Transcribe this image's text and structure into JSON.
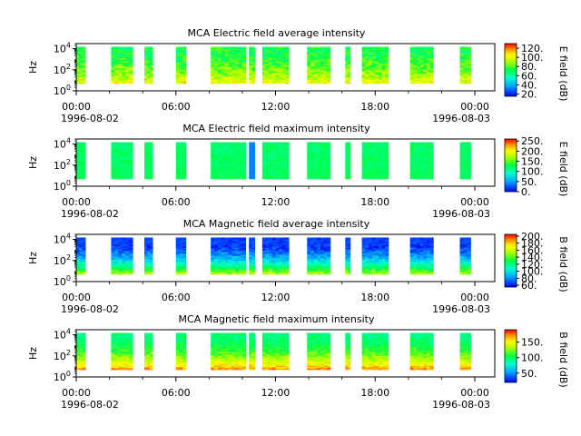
{
  "figure": {
    "time_start": "1996-08-02 00:00",
    "time_end": "1996-08-03 00:00"
  },
  "chart_data": [
    {
      "type": "heatmap",
      "title": "MCA  Electric field average intensity",
      "ylabel": "Hz",
      "yscale": "log",
      "ylim": [
        1,
        30000
      ],
      "y_ticks": [
        {
          "label": "10",
          "exp": "0",
          "value": 1
        },
        {
          "label": "10",
          "exp": "2",
          "value": 100
        },
        {
          "label": "10",
          "exp": "4",
          "value": 10000
        }
      ],
      "x_tick_labels": [
        "00:00",
        "06:00",
        "12:00",
        "18:00",
        "00:00"
      ],
      "x_date_labels": [
        "1996-08-02",
        "1996-08-03"
      ],
      "colorbar_label": "E field (dB)",
      "colorbar_ticks": [
        "120.",
        "100.",
        "80.",
        "60.",
        "40.",
        "20."
      ],
      "colorbar_range": [
        15,
        130
      ],
      "colorscale": "rainbow",
      "pattern": "electric",
      "level_base": 72,
      "low_freq_boost": 30
    },
    {
      "type": "heatmap",
      "title": "MCA  Electric field maximum intensity",
      "ylabel": "Hz",
      "yscale": "log",
      "ylim": [
        1,
        30000
      ],
      "y_ticks": [
        {
          "label": "10",
          "exp": "0",
          "value": 1
        },
        {
          "label": "10",
          "exp": "2",
          "value": 100
        },
        {
          "label": "10",
          "exp": "4",
          "value": 10000
        }
      ],
      "x_tick_labels": [
        "00:00",
        "06:00",
        "12:00",
        "18:00",
        "00:00"
      ],
      "x_date_labels": [
        "1996-08-02",
        "1996-08-03"
      ],
      "colorbar_label": "E field (dB)",
      "colorbar_ticks": [
        "250.",
        "200.",
        "150.",
        "100.",
        "50.",
        "0."
      ],
      "colorbar_range": [
        0,
        260
      ],
      "colorscale": "rainbow",
      "pattern": "electric-max",
      "level_base": 120,
      "low_freq_boost": 5
    },
    {
      "type": "heatmap",
      "title": "MCA  Magnetic field average intensity",
      "ylabel": "Hz",
      "yscale": "log",
      "ylim": [
        1,
        30000
      ],
      "y_ticks": [
        {
          "label": "10",
          "exp": "0",
          "value": 1
        },
        {
          "label": "10",
          "exp": "2",
          "value": 100
        },
        {
          "label": "10",
          "exp": "4",
          "value": 10000
        }
      ],
      "x_tick_labels": [
        "00:00",
        "06:00",
        "12:00",
        "18:00",
        "00:00"
      ],
      "x_date_labels": [
        "1996-08-02",
        "1996-08-03"
      ],
      "colorbar_label": "B field (dB)",
      "colorbar_ticks": [
        "200.",
        "180.",
        "160.",
        "140.",
        "120.",
        "100.",
        "80.",
        "60."
      ],
      "colorbar_range": [
        55,
        205
      ],
      "colorscale": "rainbow",
      "pattern": "magnetic",
      "level_base": 60,
      "low_freq_boost": 95
    },
    {
      "type": "heatmap",
      "title": "MCA  Magnetic field maximum intensity",
      "ylabel": "Hz",
      "yscale": "log",
      "ylim": [
        1,
        30000
      ],
      "y_ticks": [
        {
          "label": "10",
          "exp": "0",
          "value": 1
        },
        {
          "label": "10",
          "exp": "2",
          "value": 100
        },
        {
          "label": "10",
          "exp": "4",
          "value": 10000
        }
      ],
      "x_tick_labels": [
        "00:00",
        "06:00",
        "12:00",
        "18:00",
        "00:00"
      ],
      "x_date_labels": [
        "1996-08-02",
        "1996-08-03"
      ],
      "colorbar_label": "B field (dB)",
      "colorbar_ticks": [
        "150.",
        "100.",
        "50."
      ],
      "colorbar_range": [
        20,
        190
      ],
      "colorscale": "rainbow",
      "pattern": "magnetic-max",
      "level_base": 95,
      "low_freq_boost": 75
    }
  ],
  "data_intervals_hours": [
    [
      0.0,
      0.55
    ],
    [
      2.1,
      3.4
    ],
    [
      4.1,
      4.6
    ],
    [
      6.0,
      6.6
    ],
    [
      8.1,
      10.2
    ],
    [
      10.4,
      10.75
    ],
    [
      11.2,
      12.8
    ],
    [
      13.9,
      15.3
    ],
    [
      16.2,
      16.5
    ],
    [
      17.2,
      18.8
    ],
    [
      20.1,
      21.5
    ],
    [
      23.1,
      23.75
    ]
  ]
}
